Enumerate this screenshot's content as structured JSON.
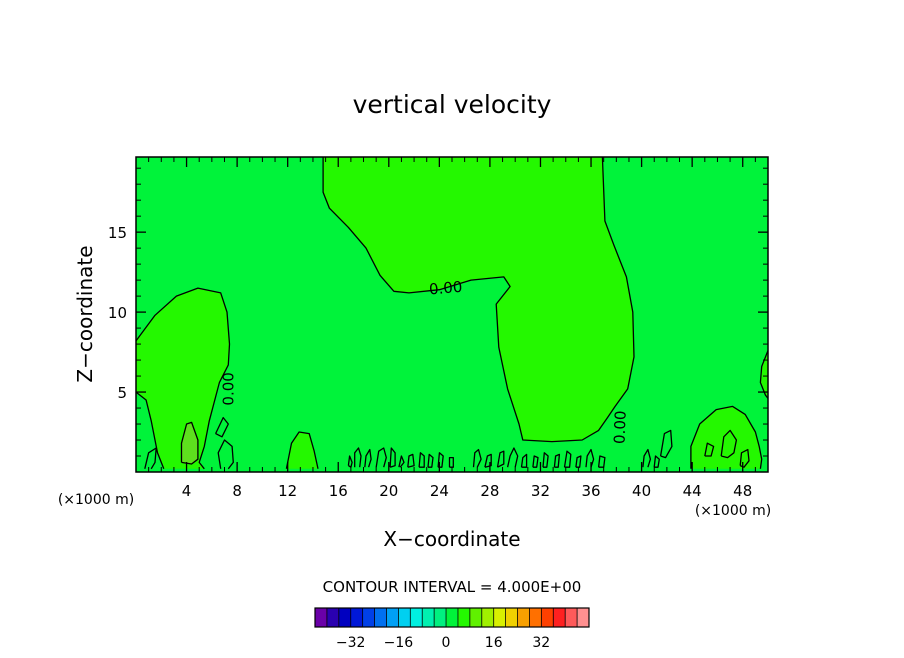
{
  "chart_data": {
    "type": "contour",
    "title": "vertical velocity",
    "xlabel": "X−coordinate",
    "ylabel": "Z−coordinate",
    "x_unit": "(×1000 m)",
    "xlim": [
      0,
      50
    ],
    "ylim": [
      0,
      19.7
    ],
    "x_ticks": [
      4,
      8,
      12,
      16,
      20,
      24,
      28,
      32,
      36,
      40,
      44,
      48
    ],
    "x_tick_labels": [
      "4",
      "8",
      "12",
      "16",
      "20",
      "24",
      "28",
      "32",
      "36",
      "40",
      "44",
      "48"
    ],
    "y_ticks": [
      5,
      10,
      15
    ],
    "y_tick_labels": [
      "5",
      "10",
      "15"
    ],
    "contour_labels": [
      {
        "text": "0.00",
        "x": 24.5,
        "z": 11.5,
        "angle": -5
      },
      {
        "text": "0.00",
        "x": 7.3,
        "z": 5.2,
        "angle": -90
      },
      {
        "text": "0.00",
        "x": 38.3,
        "z": 2.8,
        "angle": -88
      }
    ],
    "background_color": "#00f33a",
    "positive_region_color": "#24f800",
    "strong_positive_color": "#5ee01e",
    "regions": [
      {
        "name": "left-updraft",
        "color": "#24f800",
        "points": [
          [
            0,
            8.2
          ],
          [
            1.5,
            9.8
          ],
          [
            3.2,
            11.0
          ],
          [
            4.9,
            11.5
          ],
          [
            6.7,
            11.2
          ],
          [
            7.2,
            10.0
          ],
          [
            7.4,
            8.0
          ],
          [
            7.3,
            6.7
          ],
          [
            6.6,
            5.6
          ],
          [
            5.8,
            3.2
          ],
          [
            5.4,
            1.6
          ],
          [
            5.0,
            0.6
          ],
          [
            5.4,
            0.2
          ],
          [
            2.2,
            0.2
          ],
          [
            1.7,
            1.2
          ],
          [
            1.2,
            3.2
          ],
          [
            0.8,
            4.5
          ],
          [
            0,
            5.0
          ]
        ]
      },
      {
        "name": "upper-middle-updraft",
        "color": "#24f800",
        "points": [
          [
            14.8,
            19.7
          ],
          [
            36.9,
            19.7
          ],
          [
            37.1,
            15.7
          ],
          [
            37.8,
            14.2
          ],
          [
            38.8,
            12.2
          ],
          [
            39.3,
            10.0
          ],
          [
            39.4,
            7.2
          ],
          [
            38.9,
            5.2
          ],
          [
            37.9,
            4.1
          ],
          [
            37.3,
            3.4
          ],
          [
            36.6,
            2.6
          ],
          [
            35.3,
            2.0
          ],
          [
            32.9,
            1.9
          ],
          [
            30.6,
            2.0
          ],
          [
            30.3,
            3.0
          ],
          [
            29.4,
            5.2
          ],
          [
            28.7,
            7.8
          ],
          [
            28.5,
            10.5
          ],
          [
            29.6,
            11.6
          ],
          [
            29.1,
            12.2
          ],
          [
            26.5,
            12.0
          ],
          [
            24.0,
            11.4
          ],
          [
            21.6,
            11.2
          ],
          [
            20.4,
            11.3
          ],
          [
            19.3,
            12.3
          ],
          [
            18.2,
            14.0
          ],
          [
            16.8,
            15.3
          ],
          [
            15.3,
            16.5
          ],
          [
            14.8,
            17.5
          ]
        ]
      },
      {
        "name": "right-updraft",
        "color": "#24f800",
        "points": [
          [
            43.9,
            0.2
          ],
          [
            43.9,
            1.6
          ],
          [
            44.6,
            3.0
          ],
          [
            45.9,
            3.9
          ],
          [
            47.2,
            4.1
          ],
          [
            48.2,
            3.6
          ],
          [
            49.0,
            2.5
          ],
          [
            49.3,
            1.6
          ],
          [
            49.5,
            0.8
          ],
          [
            49.4,
            0.2
          ]
        ]
      },
      {
        "name": "bump-13",
        "color": "#24f800",
        "points": [
          [
            11.9,
            0.2
          ],
          [
            12.3,
            1.8
          ],
          [
            12.9,
            2.5
          ],
          [
            13.7,
            2.4
          ],
          [
            14.1,
            1.3
          ],
          [
            14.4,
            0.2
          ]
        ]
      },
      {
        "name": "right-edge-cell",
        "color": "#24f800",
        "points": [
          [
            50,
            7.6
          ],
          [
            49.5,
            6.6
          ],
          [
            49.4,
            5.6
          ],
          [
            49.8,
            4.8
          ],
          [
            50,
            4.6
          ]
        ]
      },
      {
        "name": "core-4",
        "color": "#5ee01e",
        "points": [
          [
            3.6,
            0.6
          ],
          [
            3.6,
            1.8
          ],
          [
            4.0,
            3.0
          ],
          [
            4.4,
            3.1
          ],
          [
            4.9,
            2.0
          ],
          [
            4.9,
            0.8
          ],
          [
            4.4,
            0.5
          ]
        ]
      }
    ],
    "contours": [
      [
        [
          0,
          8.2
        ],
        [
          1.5,
          9.8
        ],
        [
          3.2,
          11.0
        ],
        [
          4.9,
          11.5
        ],
        [
          6.7,
          11.2
        ],
        [
          7.2,
          10.0
        ],
        [
          7.4,
          8.0
        ],
        [
          7.3,
          6.7
        ],
        [
          6.6,
          5.6
        ],
        [
          5.8,
          3.2
        ],
        [
          5.4,
          1.6
        ],
        [
          5.0,
          0.6
        ],
        [
          5.4,
          0.2
        ]
      ],
      [
        [
          2.2,
          0.2
        ],
        [
          1.7,
          1.2
        ],
        [
          1.2,
          3.2
        ],
        [
          0.8,
          4.5
        ],
        [
          0,
          5.0
        ]
      ],
      [
        [
          14.8,
          19.7
        ],
        [
          14.8,
          17.5
        ],
        [
          15.3,
          16.5
        ],
        [
          16.8,
          15.3
        ],
        [
          18.2,
          14.0
        ],
        [
          19.3,
          12.3
        ],
        [
          20.4,
          11.3
        ],
        [
          21.6,
          11.2
        ],
        [
          24.0,
          11.4
        ],
        [
          26.5,
          12.0
        ],
        [
          29.1,
          12.2
        ],
        [
          29.6,
          11.6
        ],
        [
          28.5,
          10.5
        ],
        [
          28.7,
          7.8
        ],
        [
          29.4,
          5.2
        ],
        [
          30.3,
          3.0
        ],
        [
          30.6,
          2.0
        ],
        [
          32.9,
          1.9
        ],
        [
          35.3,
          2.0
        ],
        [
          36.6,
          2.6
        ],
        [
          37.3,
          3.4
        ],
        [
          37.9,
          4.1
        ],
        [
          38.9,
          5.2
        ],
        [
          39.4,
          7.2
        ],
        [
          39.3,
          10.0
        ],
        [
          38.8,
          12.2
        ],
        [
          37.8,
          14.2
        ],
        [
          37.1,
          15.7
        ],
        [
          36.9,
          19.7
        ]
      ],
      [
        [
          43.9,
          0.2
        ],
        [
          43.9,
          1.6
        ],
        [
          44.6,
          3.0
        ],
        [
          45.9,
          3.9
        ],
        [
          47.2,
          4.1
        ],
        [
          48.2,
          3.6
        ],
        [
          49.0,
          2.5
        ],
        [
          49.3,
          1.6
        ],
        [
          49.5,
          0.8
        ],
        [
          49.4,
          0.2
        ]
      ],
      [
        [
          11.9,
          0.2
        ],
        [
          12.3,
          1.8
        ],
        [
          12.9,
          2.5
        ],
        [
          13.7,
          2.4
        ],
        [
          14.1,
          1.3
        ],
        [
          14.4,
          0.2
        ]
      ],
      [
        [
          50,
          7.6
        ],
        [
          49.5,
          6.6
        ],
        [
          49.4,
          5.6
        ],
        [
          49.8,
          4.8
        ],
        [
          50,
          4.6
        ]
      ],
      [
        [
          3.6,
          0.6
        ],
        [
          3.6,
          1.8
        ],
        [
          4.0,
          3.0
        ],
        [
          4.4,
          3.1
        ],
        [
          4.9,
          2.0
        ],
        [
          4.9,
          0.8
        ],
        [
          4.4,
          0.5
        ],
        [
          3.6,
          0.6
        ]
      ],
      [
        [
          0.7,
          0.2
        ],
        [
          1.0,
          1.2
        ],
        [
          1.6,
          1.5
        ],
        [
          1.5,
          0.6
        ],
        [
          1.2,
          0.2
        ]
      ],
      [
        [
          6.7,
          0.2
        ],
        [
          6.5,
          1.2
        ],
        [
          7.0,
          2.0
        ],
        [
          7.6,
          1.6
        ],
        [
          7.7,
          0.6
        ],
        [
          7.3,
          0.2
        ]
      ],
      [
        [
          6.3,
          2.4
        ],
        [
          6.9,
          3.4
        ],
        [
          7.3,
          3.0
        ],
        [
          6.8,
          2.2
        ],
        [
          6.3,
          2.4
        ]
      ],
      [
        [
          16.8,
          0.4
        ],
        [
          16.9,
          1.0
        ],
        [
          17.1,
          0.6
        ],
        [
          17.0,
          0.3
        ],
        [
          16.8,
          0.4
        ]
      ],
      [
        [
          17.3,
          0.3
        ],
        [
          17.3,
          1.2
        ],
        [
          17.6,
          1.5
        ],
        [
          17.8,
          1.0
        ],
        [
          17.7,
          0.3
        ]
      ],
      [
        [
          18.1,
          0.3
        ],
        [
          18.2,
          1.0
        ],
        [
          18.5,
          1.4
        ],
        [
          18.6,
          0.8
        ],
        [
          18.4,
          0.3
        ]
      ],
      [
        [
          19.0,
          0.3
        ],
        [
          19.2,
          1.3
        ],
        [
          19.6,
          1.5
        ],
        [
          19.8,
          0.9
        ],
        [
          19.6,
          0.3
        ]
      ],
      [
        [
          20.1,
          0.3
        ],
        [
          20.2,
          1.5
        ],
        [
          20.5,
          1.2
        ],
        [
          20.5,
          0.4
        ],
        [
          20.1,
          0.3
        ]
      ],
      [
        [
          20.8,
          0.3
        ],
        [
          21.0,
          1.0
        ],
        [
          21.2,
          0.6
        ],
        [
          20.9,
          0.3
        ]
      ],
      [
        [
          21.5,
          0.3
        ],
        [
          21.6,
          1.0
        ],
        [
          21.9,
          1.1
        ],
        [
          22.0,
          0.4
        ],
        [
          21.5,
          0.3
        ]
      ],
      [
        [
          22.4,
          0.3
        ],
        [
          22.5,
          1.2
        ],
        [
          22.8,
          1.0
        ],
        [
          22.8,
          0.3
        ],
        [
          22.4,
          0.3
        ]
      ],
      [
        [
          23.1,
          0.3
        ],
        [
          23.2,
          1.1
        ],
        [
          23.5,
          0.9
        ],
        [
          23.4,
          0.3
        ],
        [
          23.1,
          0.3
        ]
      ],
      [
        [
          23.9,
          0.3
        ],
        [
          24.0,
          1.2
        ],
        [
          24.3,
          1.0
        ],
        [
          24.2,
          0.3
        ],
        [
          23.9,
          0.3
        ]
      ],
      [
        [
          24.8,
          0.3
        ],
        [
          24.8,
          0.9
        ],
        [
          25.1,
          0.9
        ],
        [
          25.1,
          0.3
        ],
        [
          24.8,
          0.3
        ]
      ],
      [
        [
          26.7,
          0.3
        ],
        [
          26.8,
          1.2
        ],
        [
          27.1,
          1.4
        ],
        [
          27.3,
          0.8
        ],
        [
          27.0,
          0.3
        ]
      ],
      [
        [
          27.6,
          0.3
        ],
        [
          27.8,
          1.0
        ],
        [
          28.1,
          1.1
        ],
        [
          28.1,
          0.4
        ],
        [
          27.6,
          0.3
        ]
      ],
      [
        [
          28.6,
          0.3
        ],
        [
          28.8,
          1.2
        ],
        [
          29.1,
          1.3
        ],
        [
          29.1,
          0.5
        ],
        [
          28.6,
          0.3
        ]
      ],
      [
        [
          29.4,
          0.3
        ],
        [
          29.6,
          1.0
        ],
        [
          29.9,
          1.5
        ],
        [
          30.2,
          1.0
        ],
        [
          30.0,
          0.3
        ]
      ],
      [
        [
          30.5,
          0.3
        ],
        [
          30.6,
          0.9
        ],
        [
          30.9,
          1.1
        ],
        [
          30.9,
          0.3
        ],
        [
          30.5,
          0.3
        ]
      ],
      [
        [
          31.4,
          0.3
        ],
        [
          31.5,
          1.0
        ],
        [
          31.8,
          0.9
        ],
        [
          31.7,
          0.3
        ],
        [
          31.4,
          0.3
        ]
      ],
      [
        [
          32.2,
          0.3
        ],
        [
          32.3,
          1.2
        ],
        [
          32.6,
          1.0
        ],
        [
          32.5,
          0.3
        ],
        [
          32.2,
          0.3
        ]
      ],
      [
        [
          33.1,
          0.3
        ],
        [
          33.2,
          1.0
        ],
        [
          33.5,
          1.1
        ],
        [
          33.4,
          0.3
        ],
        [
          33.1,
          0.3
        ]
      ],
      [
        [
          33.9,
          0.3
        ],
        [
          34.1,
          1.3
        ],
        [
          34.4,
          1.1
        ],
        [
          34.3,
          0.3
        ],
        [
          33.9,
          0.3
        ]
      ],
      [
        [
          34.8,
          0.3
        ],
        [
          34.9,
          0.9
        ],
        [
          35.2,
          1.0
        ],
        [
          35.1,
          0.3
        ],
        [
          34.8,
          0.3
        ]
      ],
      [
        [
          35.6,
          0.3
        ],
        [
          35.7,
          1.0
        ],
        [
          36.0,
          1.4
        ],
        [
          36.2,
          0.8
        ],
        [
          36.0,
          0.3
        ]
      ],
      [
        [
          36.6,
          0.3
        ],
        [
          36.7,
          1.0
        ],
        [
          37.1,
          0.9
        ],
        [
          37.0,
          0.3
        ],
        [
          36.6,
          0.3
        ]
      ],
      [
        [
          40.1,
          0.3
        ],
        [
          40.2,
          1.0
        ],
        [
          40.5,
          1.4
        ],
        [
          40.7,
          0.8
        ],
        [
          40.5,
          0.3
        ]
      ],
      [
        [
          41.0,
          0.3
        ],
        [
          41.1,
          1.0
        ],
        [
          41.4,
          0.8
        ],
        [
          41.3,
          0.3
        ],
        [
          41.0,
          0.3
        ]
      ],
      [
        [
          41.5,
          1.0
        ],
        [
          41.8,
          2.4
        ],
        [
          42.3,
          2.6
        ],
        [
          42.4,
          1.6
        ],
        [
          41.9,
          0.9
        ],
        [
          41.5,
          1.0
        ]
      ],
      [
        [
          45.0,
          1.0
        ],
        [
          45.2,
          1.8
        ],
        [
          45.7,
          1.6
        ],
        [
          45.5,
          1.0
        ],
        [
          45.0,
          1.0
        ]
      ],
      [
        [
          46.3,
          1.0
        ],
        [
          46.5,
          2.2
        ],
        [
          47.0,
          2.6
        ],
        [
          47.5,
          2.0
        ],
        [
          47.3,
          1.2
        ],
        [
          46.8,
          0.9
        ],
        [
          46.3,
          1.0
        ]
      ],
      [
        [
          47.8,
          0.4
        ],
        [
          47.9,
          1.2
        ],
        [
          48.4,
          1.4
        ],
        [
          48.5,
          0.7
        ],
        [
          48.1,
          0.3
        ],
        [
          47.8,
          0.4
        ]
      ]
    ],
    "contour_interval_label": "CONTOUR INTERVAL =  4.000E+00",
    "colorbar": {
      "colors": [
        "#6a00a8",
        "#2a00b0",
        "#0000c0",
        "#0018d8",
        "#0040e8",
        "#0070f0",
        "#00a0f5",
        "#00d0f0",
        "#00f0e0",
        "#00f0b0",
        "#00f080",
        "#00f33a",
        "#24f800",
        "#60f000",
        "#a0f000",
        "#d8f000",
        "#f0d000",
        "#f8a000",
        "#ff7000",
        "#ff4000",
        "#ff2020",
        "#ff5a5a",
        "#ff9090"
      ],
      "tick_labels": [
        "−32",
        "−16",
        "0",
        "16",
        "32"
      ],
      "tick_values": [
        -32,
        -16,
        0,
        16,
        32
      ],
      "range": [
        -44,
        48
      ]
    }
  }
}
